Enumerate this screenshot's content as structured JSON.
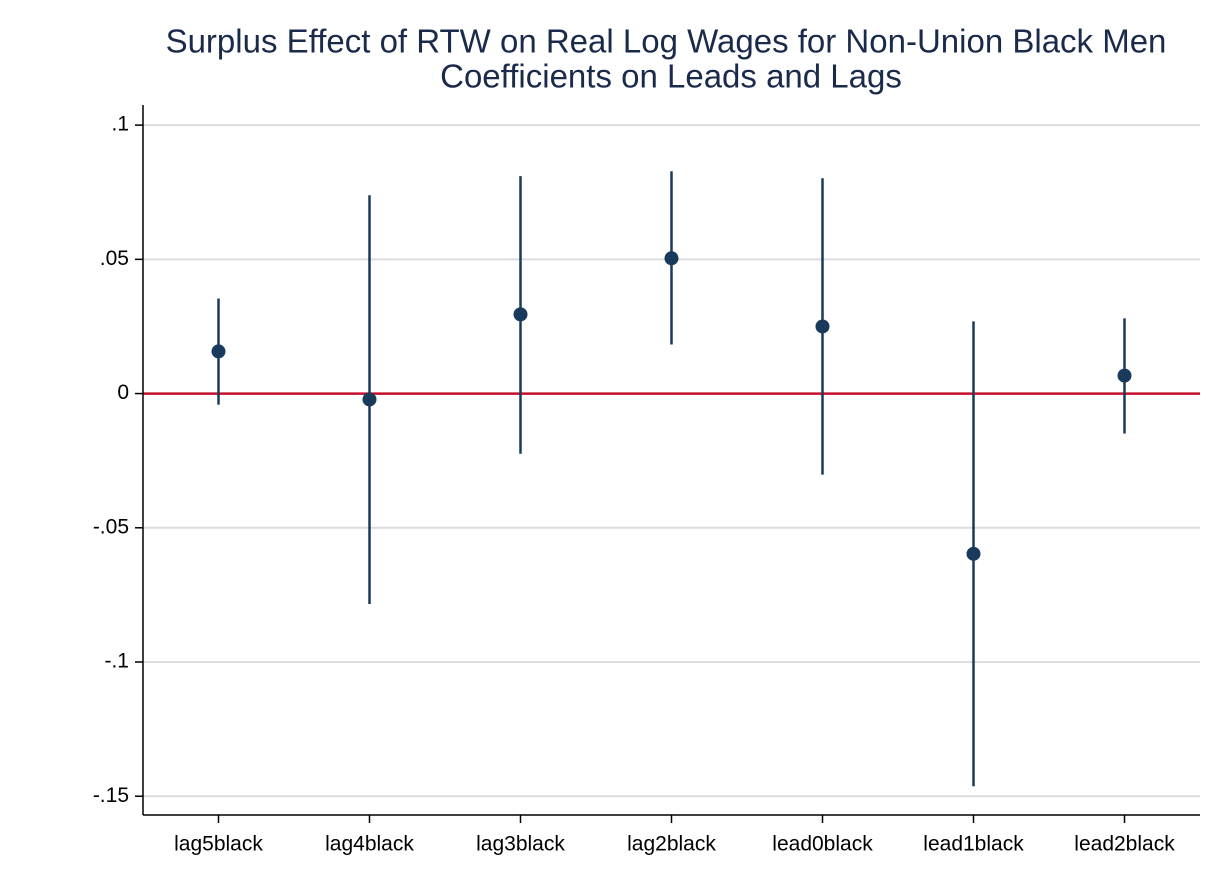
{
  "chart_data": {
    "type": "coefplot",
    "title": "Surplus Effect of RTW on Real Log Wages for Non-Union Black Men",
    "subtitle": "Coefficients on Leads and Lags",
    "categories": [
      "lag5black",
      "lag4black",
      "lag3black",
      "lag2black",
      "lead0black",
      "lead1black",
      "lead2black"
    ],
    "values": [
      0.0157,
      -0.0022,
      0.0295,
      0.0504,
      0.025,
      -0.0597,
      0.0067
    ],
    "ci_lower": [
      -0.0041,
      -0.0784,
      -0.0224,
      0.0183,
      -0.0302,
      -0.1463,
      -0.0149
    ],
    "ci_upper": [
      0.0354,
      0.0739,
      0.081,
      0.0828,
      0.0802,
      0.0269,
      0.028
    ],
    "color": "#1a3a5c",
    "reference_line": 0,
    "reference_color": "#c8102e",
    "ylim": [
      -0.157,
      0.1075
    ],
    "yticks": [
      {
        "value": 0.1,
        "label": ".1"
      },
      {
        "value": 0.05,
        "label": ".05"
      },
      0,
      {
        "value": -0.05,
        "label": "-.05"
      },
      {
        "value": -0.1,
        "label": "-.1"
      },
      {
        "value": -0.15,
        "label": "-.15"
      }
    ],
    "grid": true
  }
}
